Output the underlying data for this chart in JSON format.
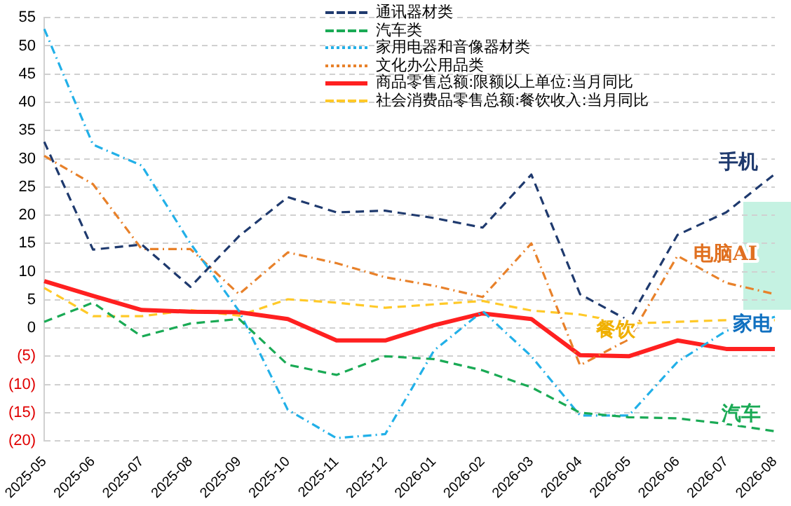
{
  "chart_data": {
    "type": "line",
    "categories": [
      "2025-05",
      "2025-06",
      "2025-07",
      "2025-08",
      "2025-09",
      "2025-10",
      "2025-11",
      "2025-12",
      "2026-01",
      "2026-02",
      "2026-03",
      "2026-04",
      "2026-05",
      "2026-06",
      "2026-07",
      "2026-08"
    ],
    "ylim": [
      -20,
      55
    ],
    "yticks": [
      {
        "value": -20,
        "label": "(20)"
      },
      {
        "value": -15,
        "label": "(15)"
      },
      {
        "value": -10,
        "label": "(10)"
      },
      {
        "value": -5,
        "label": "(5)"
      },
      0,
      5,
      10,
      15,
      20,
      25,
      30,
      35,
      40,
      45,
      50,
      55
    ],
    "grid": "y",
    "legend": "top right",
    "marker": "none",
    "series": [
      {
        "name": "通讯器材类",
        "color": "#1f3a6e",
        "line_style": "dashed",
        "values": [
          33,
          13.9,
          14.8,
          7.3,
          16.3,
          23.2,
          20.5,
          20.8,
          19.5,
          17.8,
          27.2,
          6,
          1.3,
          16.5,
          20.5,
          27.3
        ]
      },
      {
        "name": "汽车类",
        "color": "#1aaa55",
        "line_style": "dashed",
        "values": [
          1.1,
          4.5,
          -1.5,
          0.8,
          1.6,
          -6.5,
          -8.3,
          -5,
          -5.5,
          -7.5,
          -10.5,
          -15,
          -15.8,
          -16,
          -17,
          -18.3
        ]
      },
      {
        "name": "家用电器和音像器材类",
        "color": "#22b0e8",
        "line_style": "dotted",
        "values": [
          53,
          32.5,
          28.8,
          15,
          3,
          -14.5,
          -19.5,
          -18.8,
          -4,
          3,
          -5,
          -15.5,
          -15.5,
          -6,
          -0.5,
          2
        ]
      },
      {
        "name": "文化办公用品类",
        "color": "#e8812a",
        "line_style": "dotted",
        "values": [
          30.5,
          25.5,
          14,
          14,
          6,
          13.4,
          11.5,
          9,
          7.5,
          5.5,
          15,
          -6.6,
          -2,
          12.8,
          8,
          6
        ]
      },
      {
        "name": "商品零售总额:限额以上单位:当月同比",
        "color": "#ff2020",
        "line_style": "solid",
        "values": [
          8.3,
          5.7,
          3.2,
          2.9,
          2.8,
          1.6,
          -2.2,
          -2.2,
          0.5,
          2.6,
          1.6,
          -4.8,
          -5,
          -2.2,
          -3.7,
          -3.7
        ]
      },
      {
        "name": "社会消费品零售总额:餐饮收入:当月同比",
        "color": "#ffc928",
        "line_style": "dashed",
        "values": [
          7.1,
          2.1,
          2.1,
          3.2,
          2.2,
          5.1,
          4.5,
          3.6,
          4.2,
          4.8,
          3.1,
          2.4,
          0.8,
          1.1,
          1.4,
          1.4
        ]
      }
    ],
    "annotations": [
      {
        "text": "手机",
        "x": "2026-08",
        "y": 27.3
      },
      {
        "text": "电脑AI",
        "x": "2026-08",
        "y": 6
      },
      {
        "text": "餐饮",
        "x": "2026-06",
        "y": 1.1
      },
      {
        "text": "家电",
        "x": "2026-08",
        "y": 2
      },
      {
        "text": "汽车",
        "x": "2026-08",
        "y": -18.3
      }
    ]
  }
}
